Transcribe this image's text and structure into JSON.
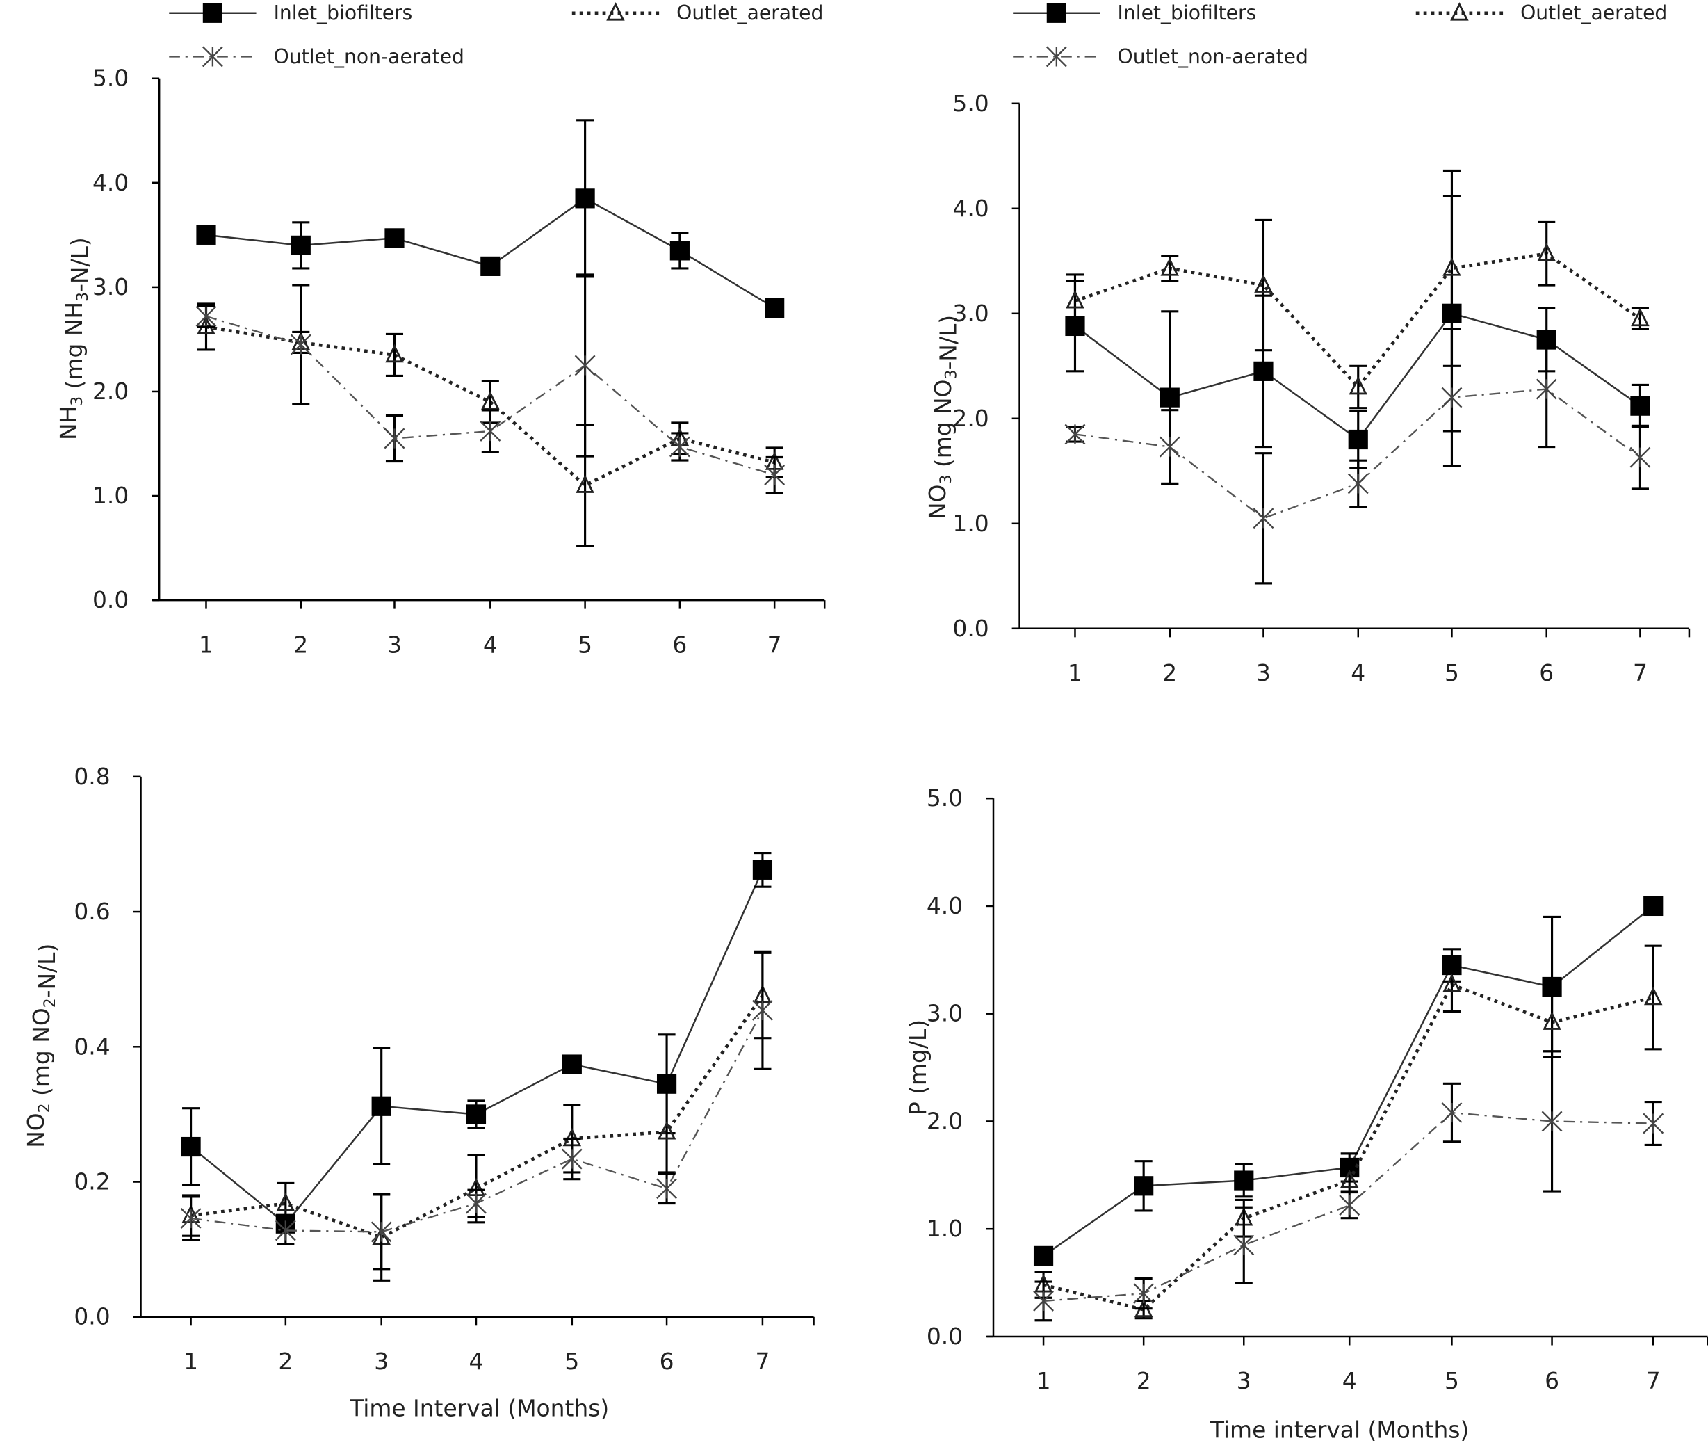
{
  "legend": {
    "series": [
      {
        "key": "inlet",
        "label": "Inlet_biofilters",
        "marker": "filled-square",
        "line": "solid"
      },
      {
        "key": "aerated",
        "label": "Outlet_aerated",
        "marker": "open-triangle",
        "line": "dotted"
      },
      {
        "key": "non_aerated",
        "label": "Outlet_non-aerated",
        "marker": "x-star",
        "line": "dash-dot"
      }
    ]
  },
  "chart_data": [
    {
      "id": "nh3",
      "type": "line",
      "ylabel": "NH3 (mg NH3-N/L)",
      "ylabel_main": "NH",
      "ylabel_sub": "3",
      "ylabel_rest": " (mg NH",
      "ylabel_sub2": "3",
      "ylabel_end": "-N/L)",
      "xlabel": "",
      "x": [
        1,
        2,
        3,
        4,
        5,
        6,
        7
      ],
      "xtick_labels": [
        "1",
        "2",
        "3",
        "4",
        "5",
        "6",
        "7"
      ],
      "ylim": [
        0,
        5
      ],
      "yticks": [
        "0.0",
        "1.0",
        "2.0",
        "3.0",
        "4.0",
        "5.0"
      ],
      "ytick_values": [
        0,
        1,
        2,
        3,
        4,
        5
      ],
      "grid": false,
      "legend_position": "top",
      "series": [
        {
          "name": "Inlet_biofilters",
          "key": "inlet",
          "values": [
            3.5,
            3.4,
            3.47,
            3.2,
            3.85,
            3.35,
            2.8
          ],
          "err": [
            0.0,
            0.22,
            0.0,
            0.0,
            0.75,
            0.17,
            0.0
          ]
        },
        {
          "name": "Outlet_aerated",
          "key": "aerated",
          "values": [
            2.62,
            2.47,
            2.35,
            1.9,
            1.1,
            1.55,
            1.32
          ],
          "err": [
            0.22,
            0.1,
            0.2,
            0.2,
            0.58,
            0.15,
            0.14
          ]
        },
        {
          "name": "Outlet_non-aerated",
          "key": "non_aerated",
          "values": [
            2.72,
            2.45,
            1.55,
            1.62,
            2.25,
            1.47,
            1.2
          ],
          "err": [
            0.1,
            0.57,
            0.22,
            0.2,
            0.87,
            0.13,
            0.17
          ]
        }
      ]
    },
    {
      "id": "no3",
      "type": "line",
      "ylabel": "NO3 (mg NO3-N/L)",
      "ylabel_main": "NO",
      "ylabel_sub": "3",
      "ylabel_rest": " (mg NO",
      "ylabel_sub2": "3",
      "ylabel_end": "-N/L)",
      "xlabel": "",
      "x": [
        1,
        2,
        3,
        4,
        5,
        6,
        7
      ],
      "xtick_labels": [
        "1",
        "2",
        "3",
        "4",
        "5",
        "6",
        "7"
      ],
      "ylim": [
        0,
        5
      ],
      "yticks": [
        "0.0",
        "1.0",
        "2.0",
        "3.0",
        "4.0",
        "5.0"
      ],
      "ytick_values": [
        0,
        1,
        2,
        3,
        4,
        5
      ],
      "grid": false,
      "legend_position": "top",
      "series": [
        {
          "name": "Inlet_biofilters",
          "key": "inlet",
          "values": [
            2.88,
            2.2,
            2.45,
            1.8,
            3.0,
            2.75,
            2.12
          ],
          "err": [
            0.43,
            0.82,
            0.72,
            0.27,
            1.12,
            0.3,
            0.2
          ]
        },
        {
          "name": "Outlet_aerated",
          "key": "aerated",
          "values": [
            3.12,
            3.43,
            3.27,
            2.3,
            3.43,
            3.57,
            2.95
          ],
          "err": [
            0.25,
            0.12,
            0.62,
            0.2,
            0.93,
            0.3,
            0.1
          ]
        },
        {
          "name": "Outlet_non-aerated",
          "key": "non_aerated",
          "values": [
            1.85,
            1.73,
            1.05,
            1.38,
            2.2,
            2.28,
            1.63
          ],
          "err": [
            0.07,
            0.35,
            0.62,
            0.22,
            0.65,
            0.55,
            0.3
          ]
        }
      ]
    },
    {
      "id": "no2",
      "type": "line",
      "ylabel": "NO2 (mg NO2-N/L)",
      "ylabel_main": "NO",
      "ylabel_sub": "2",
      "ylabel_rest": " (mg NO",
      "ylabel_sub2": "2",
      "ylabel_end": "-N/L)",
      "xlabel": "Time Interval (Months)",
      "x": [
        1,
        2,
        3,
        4,
        5,
        6,
        7
      ],
      "xtick_labels": [
        "1",
        "2",
        "3",
        "4",
        "5",
        "6",
        "7"
      ],
      "ylim": [
        0,
        0.8
      ],
      "yticks": [
        "0.0",
        "0.2",
        "0.4",
        "0.6",
        "0.8"
      ],
      "ytick_values": [
        0,
        0.2,
        0.4,
        0.6,
        0.8
      ],
      "grid": false,
      "legend_position": "none",
      "series": [
        {
          "name": "Inlet_biofilters",
          "key": "inlet",
          "values": [
            0.252,
            0.138,
            0.312,
            0.3,
            0.374,
            0.345,
            0.662
          ],
          "err": [
            0.057,
            0.0,
            0.086,
            0.02,
            0.0,
            0.073,
            0.025
          ]
        },
        {
          "name": "Outlet_aerated",
          "key": "aerated",
          "values": [
            0.15,
            0.168,
            0.118,
            0.19,
            0.264,
            0.274,
            0.476
          ],
          "err": [
            0.03,
            0.03,
            0.064,
            0.05,
            0.05,
            0.06,
            0.063
          ]
        },
        {
          "name": "Outlet_non-aerated",
          "key": "non_aerated",
          "values": [
            0.146,
            0.128,
            0.126,
            0.168,
            0.234,
            0.19,
            0.454
          ],
          "err": [
            0.032,
            0.02,
            0.055,
            0.02,
            0.03,
            0.022,
            0.087
          ]
        }
      ]
    },
    {
      "id": "p",
      "type": "line",
      "ylabel": "P (mg/L)",
      "ylabel_main": "P (mg/L)",
      "ylabel_sub": "",
      "ylabel_rest": "",
      "ylabel_sub2": "",
      "ylabel_end": "",
      "xlabel": "Time interval (Months)",
      "x": [
        1,
        2,
        3,
        4,
        5,
        6,
        7
      ],
      "xtick_labels": [
        "1",
        "2",
        "3",
        "4",
        "5",
        "6",
        "7"
      ],
      "ylim": [
        0,
        5
      ],
      "yticks": [
        "0.0",
        "1.0",
        "2.0",
        "3.0",
        "4.0",
        "5.0"
      ],
      "ytick_values": [
        0,
        1,
        2,
        3,
        4,
        5
      ],
      "grid": false,
      "legend_position": "none",
      "series": [
        {
          "name": "Inlet_biofilters",
          "key": "inlet",
          "values": [
            0.75,
            1.4,
            1.45,
            1.57,
            3.45,
            3.25,
            4.0
          ],
          "err": [
            0.0,
            0.23,
            0.15,
            0.13,
            0.15,
            0.65,
            0.05
          ]
        },
        {
          "name": "Outlet_aerated",
          "key": "aerated",
          "values": [
            0.48,
            0.25,
            1.1,
            1.45,
            3.27,
            2.92,
            3.15
          ],
          "err": [
            0.12,
            0.08,
            0.17,
            0.1,
            0.25,
            0.27,
            0.48
          ]
        },
        {
          "name": "Outlet_non-aerated",
          "key": "non_aerated",
          "values": [
            0.33,
            0.4,
            0.85,
            1.22,
            2.08,
            2.0,
            1.98
          ],
          "err": [
            0.18,
            0.14,
            0.35,
            0.12,
            0.27,
            0.65,
            0.2
          ]
        }
      ]
    }
  ]
}
